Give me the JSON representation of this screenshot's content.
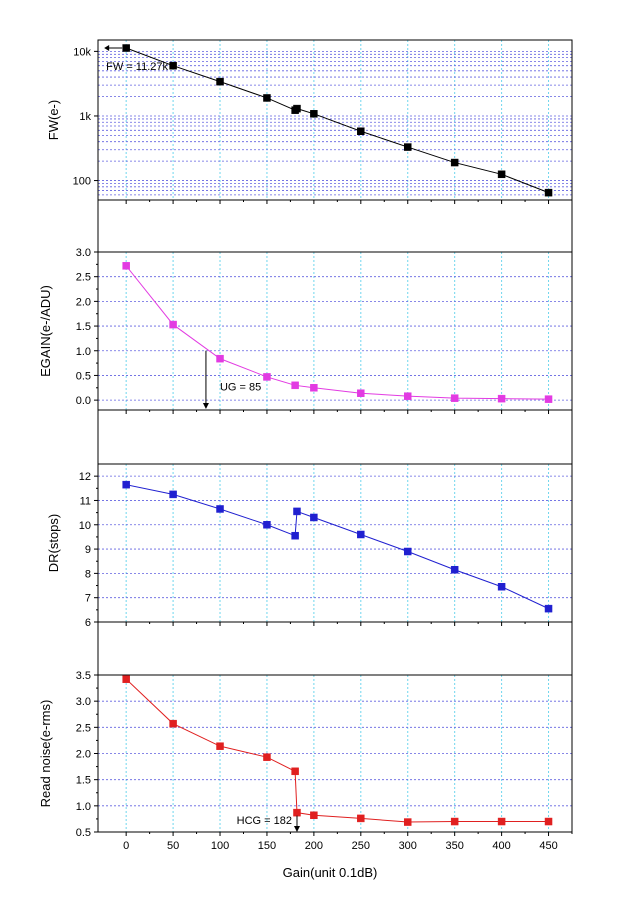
{
  "chart_data": [
    {
      "type": "line",
      "ylabel": "FW(e-)",
      "yscale": "log",
      "ylim": [
        50,
        15000
      ],
      "xlim": [
        -30,
        475
      ],
      "yticks": [
        100,
        1000,
        10000
      ],
      "ytick_labels": [
        "100",
        "1k",
        "10k"
      ],
      "grid": true,
      "series": [
        {
          "color": "#000000",
          "x": [
            0,
            50,
            100,
            150,
            180,
            182,
            200,
            250,
            300,
            350,
            400,
            450
          ],
          "y": [
            11270,
            6000,
            3400,
            1900,
            1230,
            1300,
            1080,
            580,
            330,
            190,
            125,
            65
          ]
        }
      ],
      "annotation": {
        "text": "FW = 11.27k",
        "x": 0,
        "y": 11270
      }
    },
    {
      "type": "line",
      "ylabel": "EGAIN(e-/ADU)",
      "ylim": [
        -0.2,
        3.0
      ],
      "xlim": [
        -30,
        475
      ],
      "yticks": [
        0.0,
        0.5,
        1.0,
        1.5,
        2.0,
        2.5,
        3.0
      ],
      "ytick_labels": [
        "0.0",
        "0.5",
        "1.0",
        "1.5",
        "2.0",
        "2.5",
        "3.0"
      ],
      "grid": true,
      "series": [
        {
          "color": "#e23be2",
          "x": [
            0,
            50,
            100,
            150,
            180,
            200,
            250,
            300,
            350,
            400,
            450
          ],
          "y": [
            2.72,
            1.53,
            0.84,
            0.47,
            0.3,
            0.25,
            0.14,
            0.08,
            0.04,
            0.03,
            0.02
          ]
        }
      ],
      "annotation": {
        "text": "UG = 85",
        "x": 85,
        "y": 1.0
      }
    },
    {
      "type": "line",
      "ylabel": "DR(stops)",
      "ylim": [
        6,
        12.5
      ],
      "xlim": [
        -30,
        475
      ],
      "yticks": [
        6,
        7,
        8,
        9,
        10,
        11,
        12
      ],
      "ytick_labels": [
        "6",
        "7",
        "8",
        "9",
        "10",
        "11",
        "12"
      ],
      "grid": true,
      "series": [
        {
          "color": "#2020d0",
          "x": [
            0,
            50,
            100,
            150,
            180,
            182,
            200,
            250,
            300,
            350,
            400,
            450
          ],
          "y": [
            11.65,
            11.25,
            10.65,
            10.0,
            9.55,
            10.55,
            10.3,
            9.6,
            8.9,
            8.15,
            7.45,
            6.55
          ]
        }
      ]
    },
    {
      "type": "line",
      "ylabel": "Read noise(e-rms)",
      "xlabel": "Gain(unit 0.1dB)",
      "ylim": [
        0.5,
        3.5
      ],
      "xlim": [
        -30,
        475
      ],
      "xticks": [
        0,
        50,
        100,
        150,
        200,
        250,
        300,
        350,
        400,
        450
      ],
      "yticks": [
        0.5,
        1.0,
        1.5,
        2.0,
        2.5,
        3.0,
        3.5
      ],
      "ytick_labels": [
        "0.5",
        "1.0",
        "1.5",
        "2.0",
        "2.5",
        "3.0",
        "3.5"
      ],
      "grid": true,
      "series": [
        {
          "color": "#e02020",
          "x": [
            0,
            50,
            100,
            150,
            180,
            182,
            200,
            250,
            300,
            350,
            400,
            450
          ],
          "y": [
            3.42,
            2.57,
            2.14,
            1.93,
            1.66,
            0.87,
            0.82,
            0.76,
            0.69,
            0.7,
            0.7,
            0.7
          ]
        }
      ],
      "annotation": {
        "text": "HCG = 182",
        "x": 182,
        "y": 0.87
      }
    }
  ]
}
